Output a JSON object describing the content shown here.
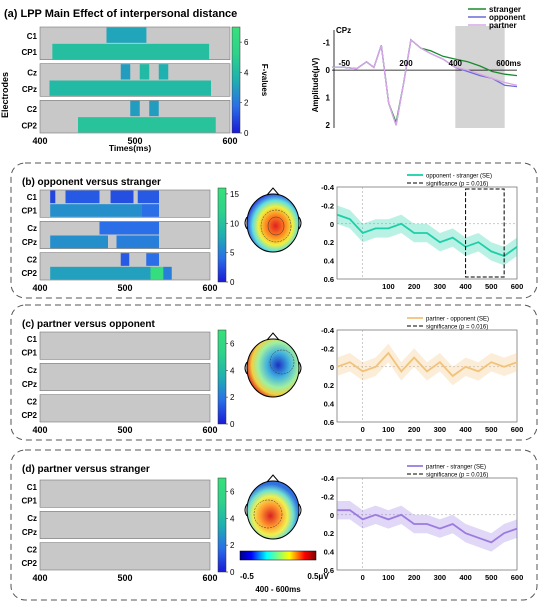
{
  "colors": {
    "stranger": "#1a8a2e",
    "opponent": "#6b6bd6",
    "partner": "#d9a6e6",
    "heat_bg": "#c8c8c8",
    "diff_b": "#1ccfa8",
    "diff_c": "#f2c27a",
    "diff_d": "#9b7be0",
    "shade": "#d4d4d4"
  },
  "panels": {
    "a": {
      "title": "(a) LPP Main Effect of interpersonal distance",
      "ylabel": "Electrodes",
      "xlabel": "Times(ms)",
      "xticks": [
        "400",
        "500",
        "600"
      ],
      "electrodes": [
        "C1",
        "CP1",
        "Cz",
        "CPz",
        "C2",
        "CP2"
      ],
      "colorbar_label": "F-values",
      "colorbar_ticks": [
        "0",
        "2",
        "4",
        "6"
      ],
      "erp": {
        "channel": "CPz",
        "ylabel": "Amplitude(μV)",
        "xticks": [
          "-50",
          "200",
          "400",
          "600ms"
        ],
        "yticks": [
          "-1",
          "0",
          "1",
          "2"
        ],
        "legend": [
          "stranger",
          "opponent",
          "partner"
        ]
      }
    },
    "b": {
      "title": "(b) opponent versus stranger",
      "colorbar_ticks": [
        "0",
        "5",
        "10",
        "15"
      ],
      "legend": [
        "opponent - stranger (SE)",
        "significance (p = 0.016)"
      ]
    },
    "c": {
      "title": "(c) partner versus opponent",
      "colorbar_ticks": [
        "0",
        "2",
        "4",
        "6"
      ],
      "legend": [
        "partner - opponent (SE)",
        "significance (p = 0.016)"
      ]
    },
    "d": {
      "title": "(d) partner versus stranger",
      "colorbar_ticks": [
        "0",
        "2",
        "4",
        "6"
      ],
      "legend": [
        "partner - stranger (SE)",
        "significance (p = 0.016)"
      ],
      "topo_scale": [
        "-0.5",
        "0.5μV"
      ],
      "topo_window": "400 - 600ms"
    }
  },
  "diff_axis": {
    "yticks": [
      "-0.4",
      "-0.2",
      "0",
      "0.2",
      "0.4",
      "0.6"
    ],
    "xticks_b": [
      "100",
      "200",
      "300",
      "400",
      "500",
      "600"
    ],
    "xticks_cd": [
      "0",
      "100",
      "200",
      "300",
      "400",
      "500",
      "600"
    ]
  },
  "heatmap_xticks": [
    "400",
    "500",
    "600"
  ],
  "chart_data": [
    {
      "type": "heatmap",
      "title": "(a) LPP Main Effect of interpersonal distance",
      "xlabel": "Times(ms)",
      "ylabel": "Electrodes",
      "xlim": [
        400,
        600
      ],
      "colorbar": {
        "label": "F-values",
        "range": [
          0,
          7
        ]
      },
      "rows": [
        "C1",
        "CP1",
        "Cz",
        "CPz",
        "C2",
        "CP2"
      ],
      "significant_segments": {
        "C1": [
          [
            470,
            512,
            3.2
          ]
        ],
        "CP1": [
          [
            413,
            578,
            4.2
          ]
        ],
        "Cz": [
          [
            485,
            495,
            3.0
          ],
          [
            505,
            515,
            4.0
          ],
          [
            525,
            535,
            3.5
          ]
        ],
        "CPz": [
          [
            410,
            580,
            4.0
          ]
        ],
        "C2": [
          [
            495,
            505,
            3.0
          ],
          [
            515,
            525,
            3.0
          ]
        ],
        "CP2": [
          [
            440,
            585,
            4.5
          ]
        ]
      }
    },
    {
      "type": "line",
      "title": "CPz",
      "ylabel": "Amplitude(μV)",
      "xlim": [
        -100,
        650
      ],
      "ylim": [
        -1.6,
        2.1
      ],
      "y_inverted": true,
      "shaded_window": [
        400,
        600
      ],
      "x": [
        -100,
        -50,
        0,
        40,
        70,
        100,
        130,
        160,
        190,
        220,
        260,
        300,
        350,
        400,
        450,
        500,
        550,
        600,
        650
      ],
      "series": [
        {
          "name": "stranger",
          "values": [
            -0.1,
            -0.1,
            -0.05,
            -0.3,
            -0.1,
            -0.9,
            1.2,
            1.9,
            0.5,
            -1.1,
            -0.8,
            -0.7,
            -0.5,
            -0.4,
            -0.3,
            -0.15,
            0.05,
            0.15,
            0.2
          ]
        },
        {
          "name": "opponent",
          "values": [
            -0.1,
            -0.1,
            -0.05,
            -0.3,
            -0.1,
            -0.9,
            1.2,
            2.0,
            0.5,
            -1.1,
            -0.8,
            -0.6,
            -0.4,
            -0.1,
            0.05,
            0.2,
            0.3,
            0.55,
            0.6
          ]
        },
        {
          "name": "partner",
          "values": [
            -0.1,
            -0.1,
            -0.05,
            -0.3,
            -0.1,
            -0.9,
            1.2,
            2.0,
            0.5,
            -1.1,
            -0.8,
            -0.6,
            -0.4,
            -0.1,
            0.0,
            0.15,
            0.3,
            0.45,
            0.55
          ]
        }
      ]
    },
    {
      "type": "line",
      "title": "(b) opponent versus stranger",
      "xlim": [
        -100,
        600
      ],
      "ylim": [
        -0.4,
        0.6
      ],
      "y_inverted": true,
      "significance_window": [
        400,
        550
      ],
      "x": [
        -100,
        -50,
        0,
        50,
        100,
        150,
        200,
        250,
        300,
        350,
        400,
        450,
        500,
        550,
        600
      ],
      "series": [
        {
          "name": "opponent - stranger (SE)",
          "values": [
            -0.1,
            -0.05,
            0.1,
            0.05,
            0.05,
            0.0,
            0.1,
            0.1,
            0.2,
            0.15,
            0.25,
            0.2,
            0.3,
            0.35,
            0.25
          ],
          "se": 0.1
        }
      ]
    },
    {
      "type": "line",
      "title": "(c) partner versus opponent",
      "xlim": [
        -100,
        600
      ],
      "ylim": [
        -0.4,
        0.6
      ],
      "y_inverted": true,
      "x": [
        -100,
        -50,
        0,
        50,
        100,
        150,
        200,
        250,
        300,
        350,
        400,
        450,
        500,
        550,
        600
      ],
      "series": [
        {
          "name": "partner - opponent (SE)",
          "values": [
            0.0,
            -0.05,
            0.05,
            0.0,
            -0.15,
            0.05,
            -0.1,
            0.05,
            -0.05,
            0.1,
            0.0,
            0.05,
            -0.05,
            0.0,
            -0.05
          ],
          "se": 0.1
        }
      ]
    },
    {
      "type": "line",
      "title": "(d) partner versus stranger",
      "xlim": [
        -100,
        600
      ],
      "ylim": [
        -0.4,
        0.6
      ],
      "y_inverted": true,
      "x": [
        -100,
        -50,
        0,
        50,
        100,
        150,
        200,
        250,
        300,
        350,
        400,
        450,
        500,
        550,
        600
      ],
      "series": [
        {
          "name": "partner - stranger (SE)",
          "values": [
            -0.05,
            -0.05,
            0.05,
            0.0,
            0.05,
            0.0,
            0.1,
            0.1,
            0.15,
            0.1,
            0.2,
            0.25,
            0.3,
            0.2,
            0.15
          ],
          "se": 0.1
        }
      ]
    }
  ]
}
